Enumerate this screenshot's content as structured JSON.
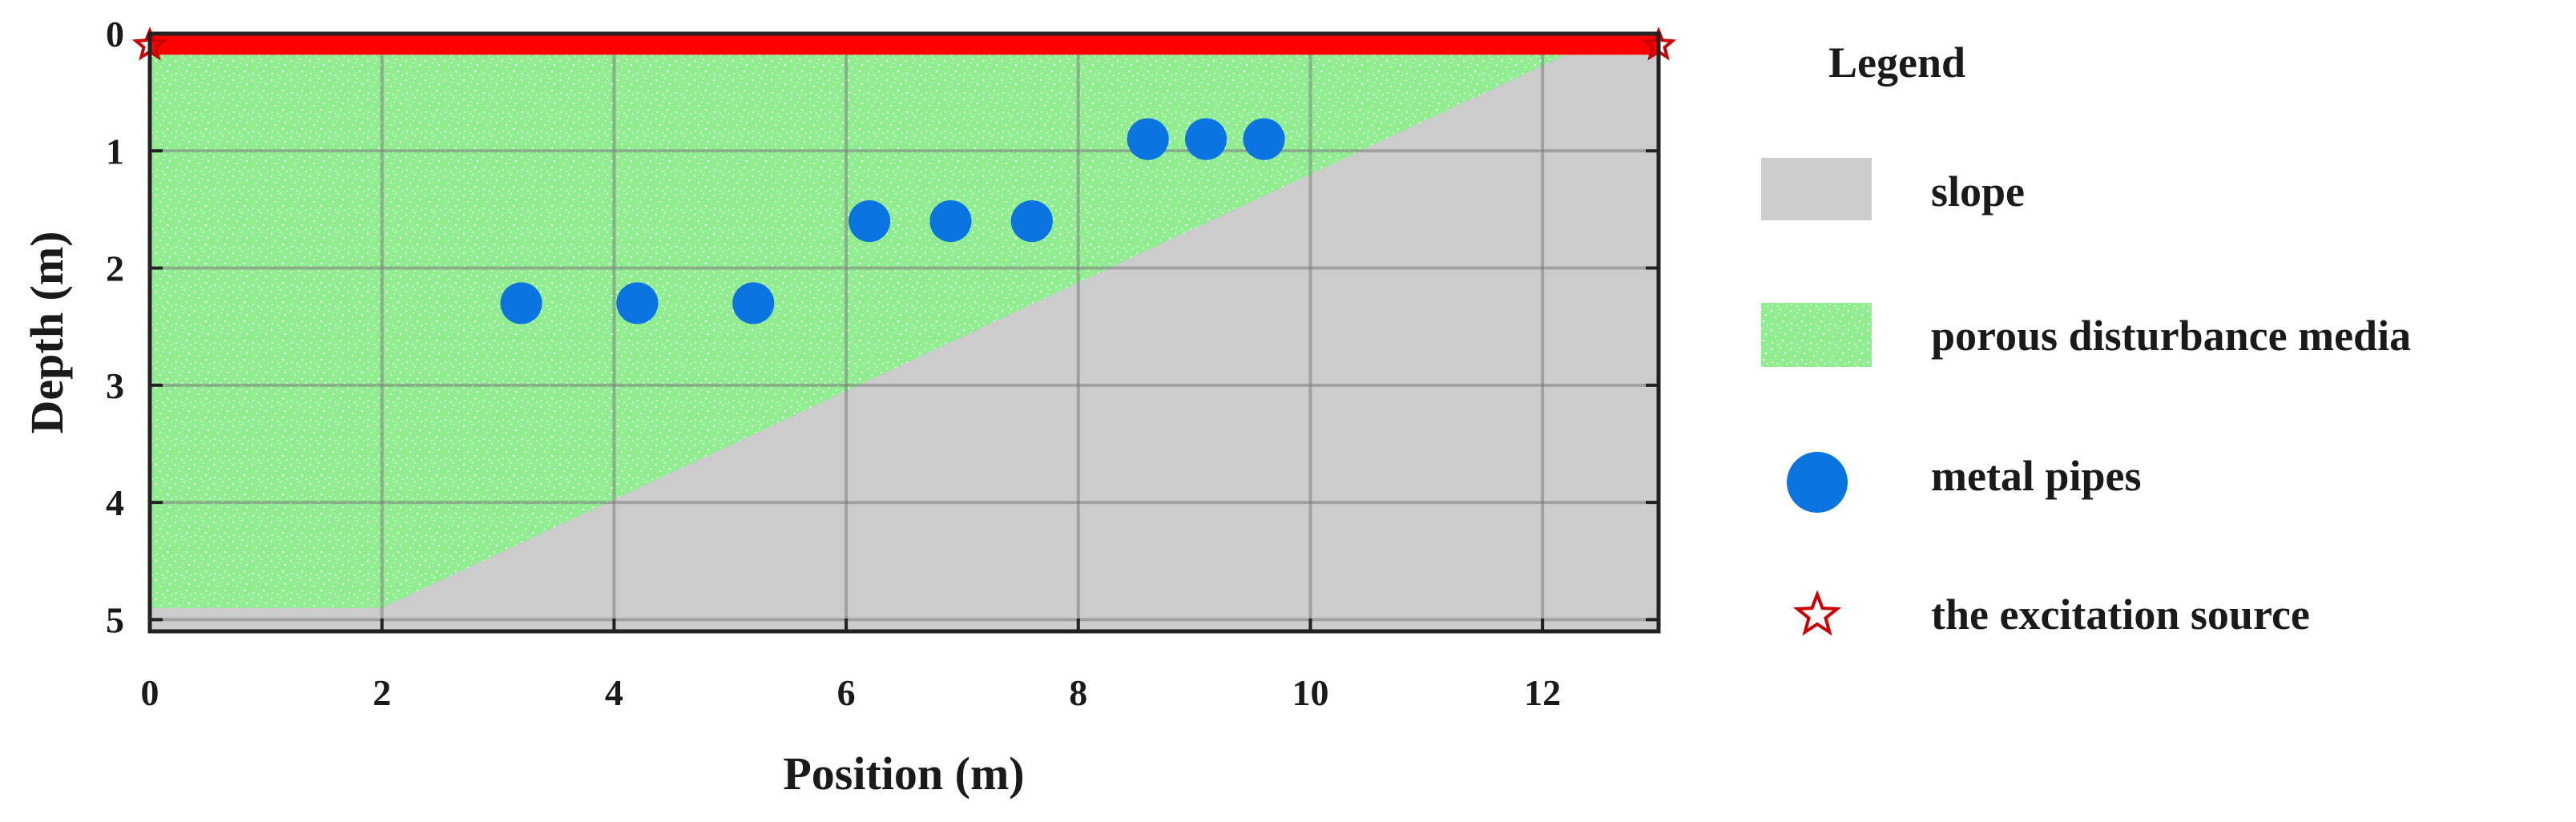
{
  "figure": {
    "x_axis": {
      "label": "Position (m)",
      "range": [
        0,
        13
      ],
      "ticks": [
        0,
        2,
        4,
        6,
        8,
        10,
        12
      ]
    },
    "y_axis": {
      "label": "Depth (m)",
      "range": [
        0,
        5.1
      ],
      "ticks": [
        0,
        1,
        2,
        3,
        4,
        5
      ],
      "inverted": true
    },
    "grid": true,
    "regions": {
      "excitation_band": {
        "depth_from": 0,
        "depth_to": 0.18,
        "color": "#ff0000"
      },
      "porous_color": "#90ee90",
      "slope_color": "#cccccc",
      "slope_boundary": [
        [
          0,
          4.9
        ],
        [
          2,
          4.9
        ],
        [
          12.2,
          0.18
        ]
      ]
    },
    "pipes": {
      "color": "#0a74e0",
      "radius_m": 0.18,
      "points": [
        [
          3.2,
          2.3
        ],
        [
          4.2,
          2.3
        ],
        [
          5.2,
          2.3
        ],
        [
          6.2,
          1.6
        ],
        [
          6.9,
          1.6
        ],
        [
          7.6,
          1.6
        ],
        [
          8.6,
          0.9
        ],
        [
          9.1,
          0.9
        ],
        [
          9.6,
          0.9
        ]
      ]
    },
    "sources": {
      "color": "#cc0000",
      "points": [
        [
          0,
          0.1
        ],
        [
          13,
          0.1
        ]
      ]
    }
  },
  "legend": {
    "title": "Legend",
    "items": [
      {
        "label": "slope",
        "icon": "gray-rectangle",
        "color": "#cccccc"
      },
      {
        "label": "porous disturbance media",
        "icon": "green-speckled-rectangle",
        "color": "#90ee90"
      },
      {
        "label": "metal pipes",
        "icon": "blue-circle",
        "color": "#0a74e0"
      },
      {
        "label": "the excitation source",
        "icon": "red-star-outline",
        "color": "#cc0000"
      }
    ]
  }
}
